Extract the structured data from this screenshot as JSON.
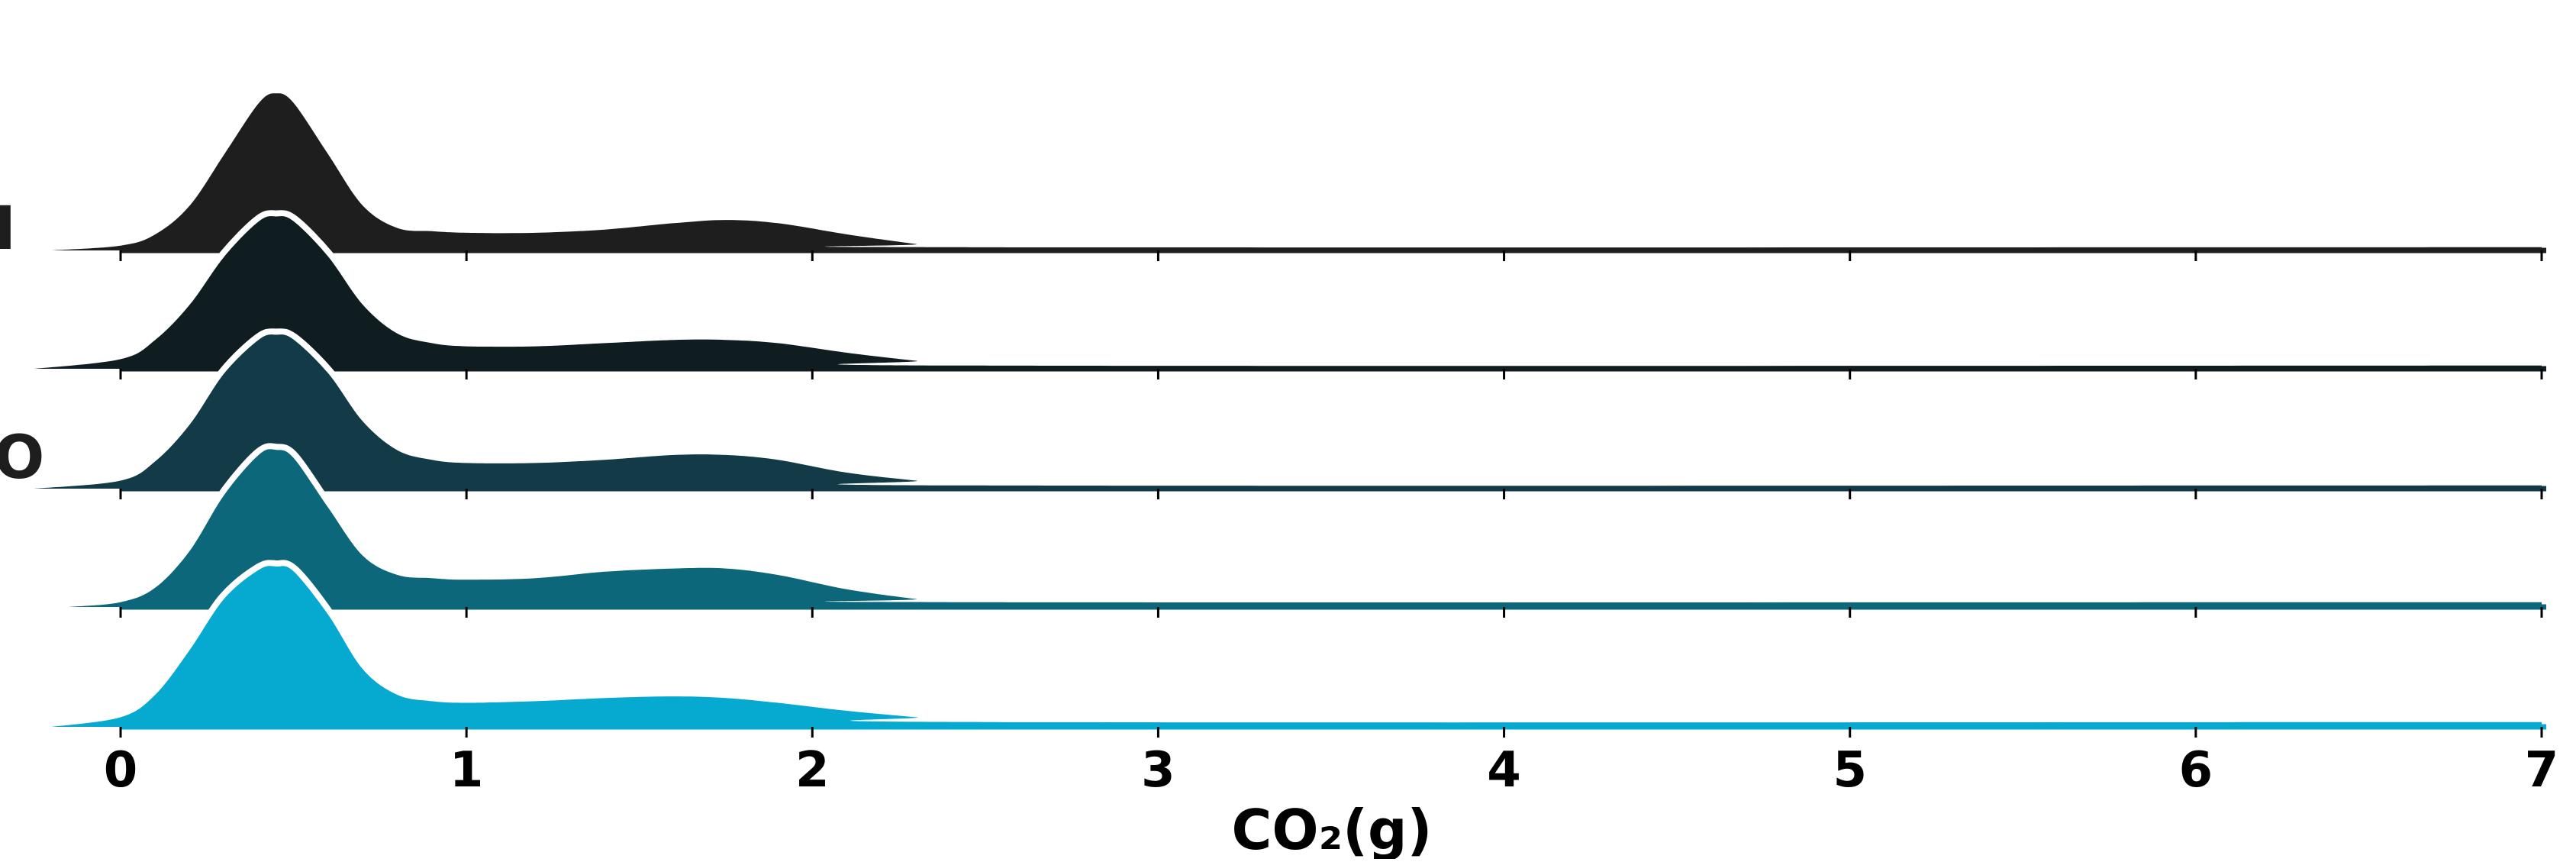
{
  "chart_data": {
    "type": "area",
    "subtype": "ridgeline",
    "xlabel": "CO₂(g)",
    "x_ticks": [
      0,
      1,
      2,
      3,
      4,
      5,
      6,
      7
    ],
    "xlim": [
      -0.22,
      7.0
    ],
    "grid": false,
    "legend": "none",
    "row_labels_visible": [
      "I",
      "O"
    ],
    "series": [
      {
        "color": "#1e1e1e",
        "x": [
          -0.2,
          0,
          0.1,
          0.2,
          0.3,
          0.4,
          0.45,
          0.5,
          0.6,
          0.7,
          0.8,
          0.9,
          1.0,
          1.2,
          1.4,
          1.6,
          1.75,
          1.9,
          2.1,
          2.3,
          2.4,
          7.0
        ],
        "y": [
          0.0,
          0.03,
          0.1,
          0.28,
          0.6,
          0.92,
          0.98,
          0.92,
          0.6,
          0.28,
          0.14,
          0.12,
          0.11,
          0.11,
          0.13,
          0.17,
          0.19,
          0.17,
          0.1,
          0.04,
          0.02,
          0.02
        ]
      },
      {
        "color": "#0f1d21",
        "x": [
          -0.25,
          0,
          0.1,
          0.2,
          0.3,
          0.4,
          0.45,
          0.5,
          0.6,
          0.7,
          0.8,
          0.9,
          1.0,
          1.2,
          1.4,
          1.6,
          1.75,
          1.9,
          2.1,
          2.3,
          2.45,
          7.0
        ],
        "y": [
          0.0,
          0.06,
          0.18,
          0.4,
          0.7,
          0.92,
          0.95,
          0.92,
          0.7,
          0.4,
          0.22,
          0.16,
          0.14,
          0.14,
          0.16,
          0.18,
          0.18,
          0.16,
          0.1,
          0.05,
          0.02,
          0.02
        ]
      },
      {
        "color": "#123b47",
        "x": [
          -0.25,
          0,
          0.1,
          0.2,
          0.3,
          0.4,
          0.45,
          0.5,
          0.6,
          0.7,
          0.8,
          0.9,
          1.0,
          1.2,
          1.4,
          1.6,
          1.75,
          1.9,
          2.1,
          2.3,
          2.45,
          7.0
        ],
        "y": [
          0.0,
          0.05,
          0.17,
          0.4,
          0.72,
          0.93,
          0.96,
          0.93,
          0.72,
          0.42,
          0.24,
          0.18,
          0.16,
          0.16,
          0.18,
          0.21,
          0.21,
          0.18,
          0.1,
          0.05,
          0.02,
          0.02
        ]
      },
      {
        "color": "#0b6779",
        "x": [
          -0.15,
          0,
          0.1,
          0.2,
          0.3,
          0.4,
          0.45,
          0.5,
          0.6,
          0.7,
          0.8,
          0.9,
          1.0,
          1.2,
          1.4,
          1.6,
          1.75,
          1.9,
          2.1,
          2.3,
          2.4,
          7.0
        ],
        "y": [
          0.0,
          0.03,
          0.12,
          0.35,
          0.7,
          0.95,
          0.98,
          0.93,
          0.62,
          0.32,
          0.2,
          0.18,
          0.17,
          0.18,
          0.22,
          0.24,
          0.24,
          0.2,
          0.11,
          0.05,
          0.03,
          0.03
        ]
      },
      {
        "color": "#06a9d0",
        "x": [
          -0.2,
          0,
          0.1,
          0.2,
          0.3,
          0.4,
          0.45,
          0.5,
          0.6,
          0.7,
          0.8,
          0.9,
          1.0,
          1.2,
          1.4,
          1.6,
          1.75,
          1.9,
          2.1,
          2.3,
          2.5,
          7.0
        ],
        "y": [
          0.0,
          0.06,
          0.2,
          0.48,
          0.8,
          0.98,
          1.0,
          0.97,
          0.7,
          0.36,
          0.2,
          0.16,
          0.15,
          0.16,
          0.18,
          0.19,
          0.18,
          0.15,
          0.1,
          0.06,
          0.03,
          0.03
        ]
      }
    ]
  }
}
